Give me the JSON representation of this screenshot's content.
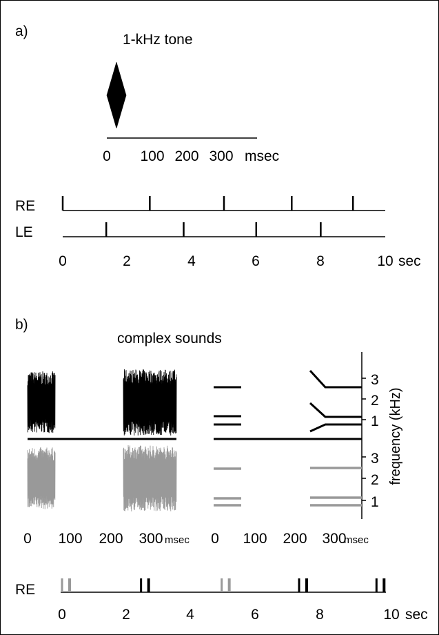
{
  "panel_a": {
    "label": "a)",
    "title": "1-kHz tone",
    "tone_axis": {
      "ticks": [
        "0",
        "100",
        "200",
        "300"
      ],
      "unit": "msec"
    },
    "timeline": {
      "rows": [
        {
          "label": "RE",
          "events": [
            0,
            2.7,
            5.0,
            7.1,
            9.0
          ]
        },
        {
          "label": "LE",
          "events": [
            1.35,
            3.75,
            6.0,
            8.0
          ]
        }
      ],
      "ticks": [
        "0",
        "2",
        "4",
        "6",
        "8",
        "10"
      ],
      "unit": "sec"
    }
  },
  "panel_b": {
    "label": "b)",
    "title": "complex sounds",
    "wave_axis": {
      "ticks": [
        "0",
        "100",
        "200",
        "300"
      ],
      "unit": "msec"
    },
    "spec_axis": {
      "ticks": [
        "0",
        "100",
        "200",
        "300"
      ],
      "unit": "msec"
    },
    "freq_axis": {
      "label": "frequency (kHz)",
      "ticks_top": [
        "3",
        "2",
        "1"
      ],
      "ticks_bottom": [
        "3",
        "2",
        "1"
      ]
    },
    "timeline": {
      "label": "RE",
      "ticks": [
        "0",
        "2",
        "4",
        "6",
        "8",
        "10"
      ],
      "unit": "sec",
      "events": [
        {
          "t": 0,
          "color": "gray"
        },
        {
          "t": 2.45,
          "color": "black"
        },
        {
          "t": 4.95,
          "color": "gray"
        },
        {
          "t": 7.35,
          "color": "black"
        },
        {
          "t": 9.75,
          "color": "black"
        }
      ]
    }
  },
  "colors": {
    "black": "#000000",
    "gray": "#999999"
  }
}
